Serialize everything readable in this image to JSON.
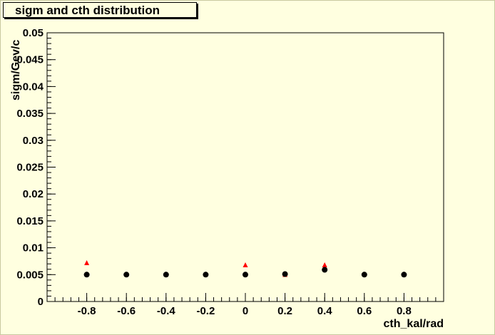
{
  "chart_data": {
    "type": "scatter",
    "title": "sigm and cth distribution",
    "xlabel": "cth_kal/rad",
    "ylabel": "sigm/Gev/c",
    "xlim": [
      -1,
      1
    ],
    "ylim": [
      0,
      0.05
    ],
    "x_ticks": [
      -0.8,
      -0.6,
      -0.4,
      -0.2,
      0,
      0.2,
      0.4,
      0.6,
      0.8
    ],
    "x_tick_labels": [
      "-0.8",
      "-0.6",
      "-0.4",
      "-0.2",
      "0",
      "0.2",
      "0.4",
      "0.6",
      "0.8"
    ],
    "y_ticks": [
      0,
      0.005,
      0.01,
      0.015,
      0.02,
      0.025,
      0.03,
      0.035,
      0.04,
      0.045,
      0.05
    ],
    "y_tick_labels": [
      "0",
      "0.005",
      "0.01",
      "0.015",
      "0.02",
      "0.025",
      "0.03",
      "0.035",
      "0.04",
      "0.045",
      "0.05"
    ],
    "grid": false,
    "series": [
      {
        "marker": "triangle",
        "color": "#ff0000",
        "x": [
          -0.8,
          0,
          0.2,
          0.4
        ],
        "y": [
          0.0071,
          0.0067,
          0.0049,
          0.0067
        ]
      },
      {
        "marker": "circle",
        "color": "#000000",
        "x": [
          -0.8,
          -0.6,
          -0.4,
          -0.2,
          0,
          0.2,
          0.4,
          0.6,
          0.8
        ],
        "y": [
          0.005,
          0.005,
          0.005,
          0.005,
          0.005,
          0.0051,
          0.0059,
          0.005,
          0.005
        ]
      }
    ]
  }
}
